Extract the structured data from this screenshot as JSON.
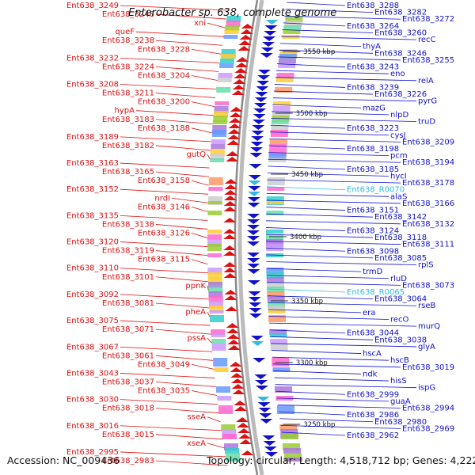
{
  "title": "Enterobacter sp. 638, complete genome",
  "accession": "Accession: NC_009436",
  "topology": "Topology: circular; Length: 4,518,712 bp; Genes: 4,222",
  "colors": {
    "minus_strand": "#dd1111",
    "plus_strand": "#1111cc",
    "rna": "#33bbdd",
    "backbone": "#888888",
    "tick": "#2a8a2a"
  },
  "ticks": [
    "3550 kbp",
    "3500 kbp",
    "3450 kbp",
    "3400 kbp",
    "3350 kbp",
    "3300 kbp",
    "3250 kbp"
  ],
  "left_labels": [
    "Ent638_3249",
    "Ent638_3248",
    "xni",
    "queF",
    "Ent638_3238",
    "Ent638_3228",
    "Ent638_3232",
    "Ent638_3224",
    "Ent638_3204",
    "Ent638_3208",
    "Ent638_3211",
    "Ent638_3200",
    "hypA",
    "Ent638_3183",
    "Ent638_3188",
    "Ent638_3189",
    "Ent638_3182",
    "gutQ",
    "Ent638_3163",
    "Ent638_3165",
    "Ent638_3158",
    "Ent638_3152",
    "nrdI",
    "Ent638_3146",
    "Ent638_3135",
    "Ent638_3138",
    "Ent638_3126",
    "Ent638_3120",
    "Ent638_3119",
    "Ent638_3115",
    "Ent638_3110",
    "Ent638_3101",
    "ppnK",
    "Ent638_3092",
    "Ent638_3081",
    "pheA",
    "Ent638_3075",
    "Ent638_3071",
    "pssA",
    "Ent638_3067",
    "Ent638_3061",
    "Ent638_3049",
    "Ent638_3043",
    "Ent638_3037",
    "Ent638_3035",
    "Ent638_3030",
    "Ent638_3018",
    "sseA",
    "Ent638_3016",
    "Ent638_3015",
    "xseA",
    "Ent638_2995",
    "Ent638_2983"
  ],
  "right_labels": [
    "Ent638_3288",
    "Ent638_3282",
    "Ent638_3272",
    "Ent638_3264",
    "Ent638_3260",
    "recC",
    "thyA",
    "Ent638_3246",
    "Ent638_3255",
    "Ent638_3243",
    "eno",
    "relA",
    "Ent638_3239",
    "Ent638_3226",
    "pyrG",
    "mazG",
    "nlpD",
    "truD",
    "Ent638_3223",
    "cysJ",
    "Ent638_3209",
    "Ent638_3198",
    "pcm",
    "Ent638_3194",
    "Ent638_3185",
    "hycI",
    "Ent638_3178",
    "Ent638_R0070",
    "alaS",
    "Ent638_3166",
    "Ent638_3151",
    "Ent638_3142",
    "Ent638_3132",
    "Ent638_3124",
    "Ent638_3118",
    "Ent638_3111",
    "Ent638_3098",
    "Ent638_3085",
    "rplS",
    "trmD",
    "rluD",
    "Ent638_3073",
    "Ent638_R0065",
    "Ent638_3064",
    "rseB",
    "era",
    "recO",
    "murQ",
    "Ent638_3044",
    "Ent638_3038",
    "glyA",
    "hscA",
    "hscB",
    "Ent638_3019",
    "ndk",
    "hisS",
    "ispG",
    "Ent638_2999",
    "guaA",
    "Ent638_2994",
    "Ent638_2986",
    "Ent638_2980",
    "Ent638_2969",
    "Ent638_2962"
  ]
}
